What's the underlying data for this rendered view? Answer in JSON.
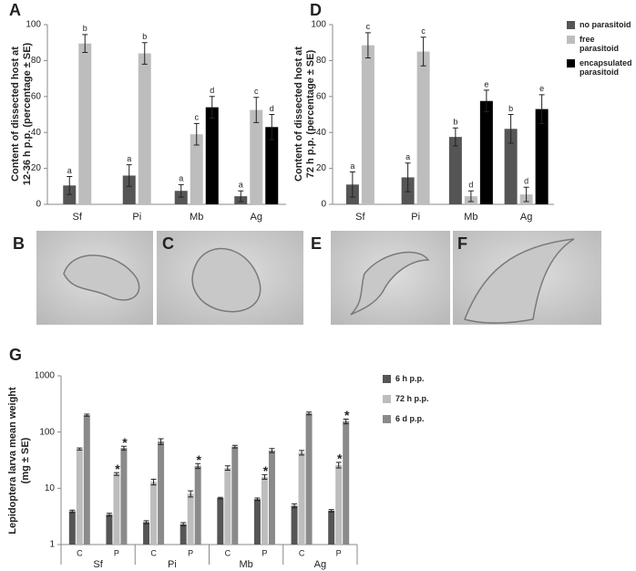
{
  "chart_data": [
    {
      "type": "bar",
      "panel": "A",
      "y_label": [
        "Content of dissected host at",
        "12-36 h p.p. (percentage ± SE)"
      ],
      "categories": [
        "Sf",
        "Pi",
        "Mb",
        "Ag"
      ],
      "ylim": [
        0,
        100
      ],
      "yticks": [
        0,
        20,
        40,
        60,
        80,
        100
      ],
      "series": [
        {
          "color": "#555555",
          "values": [
            10.5,
            16,
            7.5,
            4.5
          ],
          "errors": [
            5,
            6,
            3.5,
            3
          ],
          "letters": [
            "a",
            "a",
            "a",
            "a"
          ]
        },
        {
          "color": "#bdbdbd",
          "values": [
            89.5,
            84,
            39,
            52.5
          ],
          "errors": [
            5,
            6,
            6,
            7
          ],
          "letters": [
            "b",
            "b",
            "c",
            "c"
          ]
        },
        {
          "color": "#000000",
          "values": [
            null,
            null,
            54,
            43
          ],
          "errors": [
            null,
            null,
            6,
            7
          ],
          "letters": [
            null,
            null,
            "d",
            "d"
          ]
        }
      ]
    },
    {
      "type": "bar",
      "panel": "D",
      "y_label": [
        "Content of dissected host at",
        "72 h p.p. (percentage ± SE)"
      ],
      "categories": [
        "Sf",
        "Pi",
        "Mb",
        "Ag"
      ],
      "ylim": [
        0,
        100
      ],
      "yticks": [
        0,
        20,
        40,
        60,
        80,
        100
      ],
      "series": [
        {
          "name": "no parasitoid",
          "color": "#555555",
          "values": [
            11,
            15,
            37.5,
            42
          ],
          "errors": [
            7,
            8,
            5,
            8
          ],
          "letters": [
            "a",
            "a",
            "b",
            "b"
          ]
        },
        {
          "name": "free parasitoid",
          "color": "#bdbdbd",
          "values": [
            88.5,
            85,
            4.5,
            5.5
          ],
          "errors": [
            7,
            8,
            3,
            4
          ],
          "letters": [
            "c",
            "c",
            "d",
            "d"
          ]
        },
        {
          "name": "encapsulated parasitoid",
          "color": "#000000",
          "values": [
            null,
            null,
            57.5,
            53
          ],
          "errors": [
            null,
            null,
            6,
            8
          ],
          "letters": [
            null,
            null,
            "e",
            "e"
          ]
        }
      ]
    },
    {
      "type": "bar",
      "panel": "G",
      "log_scale": true,
      "y_label": [
        "Lepidoptera larva mean weight",
        "(mg ± SE)"
      ],
      "categories": [
        "C",
        "P",
        "C",
        "P",
        "C",
        "P",
        "C",
        "P"
      ],
      "groups": [
        "Sf",
        "Pi",
        "Mb",
        "Ag"
      ],
      "ylim": [
        1,
        1000
      ],
      "yticks": [
        1,
        10,
        100,
        1000
      ],
      "series": [
        {
          "name": "6 h p.p.",
          "color": "#555555",
          "values": [
            3.9,
            3.4,
            2.5,
            2.3,
            6.7,
            6.4,
            4.9,
            4.0
          ],
          "errors": [
            0.2,
            0.2,
            0.15,
            0.15,
            0.2,
            0.3,
            0.4,
            0.2
          ],
          "stars": [
            null,
            null,
            null,
            null,
            null,
            null,
            null,
            null
          ]
        },
        {
          "name": "72 h p.p.",
          "color": "#bdbdbd",
          "values": [
            50,
            18,
            13,
            8,
            23,
            16,
            43,
            26
          ],
          "errors": [
            2,
            1,
            1.5,
            1,
            2,
            1.5,
            4,
            3
          ],
          "stars": [
            null,
            "*",
            null,
            null,
            null,
            "*",
            null,
            "*"
          ]
        },
        {
          "name": "6 d p.p.",
          "color": "#8a8a8a",
          "values": [
            200,
            52,
            68,
            25,
            55,
            47,
            215,
            155
          ],
          "errors": [
            8,
            4,
            8,
            2.5,
            3,
            4,
            12,
            15
          ],
          "stars": [
            null,
            "*",
            null,
            "*",
            null,
            null,
            null,
            "*"
          ]
        }
      ]
    }
  ],
  "images": [
    {
      "label": "B"
    },
    {
      "label": "C"
    },
    {
      "label": "E"
    },
    {
      "label": "F"
    }
  ]
}
